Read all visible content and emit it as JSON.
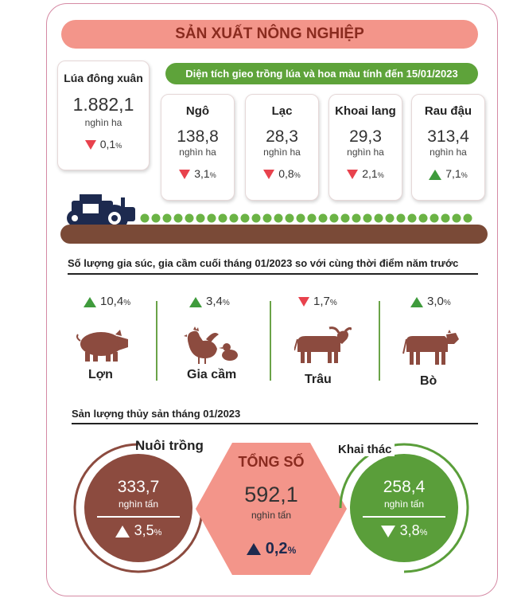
{
  "title": "SẢN XUẤT NÔNG NGHIỆP",
  "rice": {
    "label": "Lúa đông xuân",
    "value": "1.882,1",
    "unit": "nghìn ha",
    "change": "0,1",
    "pct": "%",
    "direction": "down"
  },
  "crops_header": "Diện tích gieo trồng lúa và hoa màu tính đến 15/01/2023",
  "crops": [
    {
      "label": "Ngô",
      "value": "138,8",
      "unit": "nghìn ha",
      "change": "3,1",
      "pct": "%",
      "direction": "down"
    },
    {
      "label": "Lạc",
      "value": "28,3",
      "unit": "nghìn ha",
      "change": "0,8",
      "pct": "%",
      "direction": "down"
    },
    {
      "label": "Khoai lang",
      "value": "29,3",
      "unit": "nghìn ha",
      "change": "2,1",
      "pct": "%",
      "direction": "down"
    },
    {
      "label": "Rau đậu",
      "value": "313,4",
      "unit": "nghìn ha",
      "change": "7,1",
      "pct": "%",
      "direction": "up"
    }
  ],
  "livestock_header": "Số lượng gia súc, gia cầm cuối tháng 01/2023 so với cùng thời điểm năm trước",
  "livestock": [
    {
      "label": "Lợn",
      "change": "10,4",
      "pct": "%",
      "direction": "up",
      "icon": "pig-icon"
    },
    {
      "label": "Gia cầm",
      "change": "3,4",
      "pct": "%",
      "direction": "up",
      "icon": "poultry-icon"
    },
    {
      "label": "Trâu",
      "change": "1,7",
      "pct": "%",
      "direction": "down",
      "icon": "buffalo-icon"
    },
    {
      "label": "Bò",
      "change": "3,0",
      "pct": "%",
      "direction": "up",
      "icon": "cow-icon"
    }
  ],
  "fishery_header": "Sản lượng thủy sản tháng 01/2023",
  "fishery": {
    "farming": {
      "label": "Nuôi trồng",
      "value": "333,7",
      "unit": "nghìn tấn",
      "change": "3,5",
      "pct": "%",
      "direction": "up"
    },
    "total": {
      "label": "TỔNG SỐ",
      "value": "592,1",
      "unit": "nghìn tấn",
      "change": "0,2",
      "pct": "%",
      "direction": "up"
    },
    "catch": {
      "label": "Khai thác",
      "value": "258,4",
      "unit": "nghìn tấn",
      "change": "3,8",
      "pct": "%",
      "direction": "down"
    }
  },
  "colors": {
    "title_bg": "#f3958a",
    "green": "#5ea33a",
    "down_red": "#e8424d",
    "up_green": "#3f9b3c",
    "farming_circle": "#8c4b3f",
    "total_hex": "#f3958a",
    "catch_circle": "#5a9e3a"
  }
}
